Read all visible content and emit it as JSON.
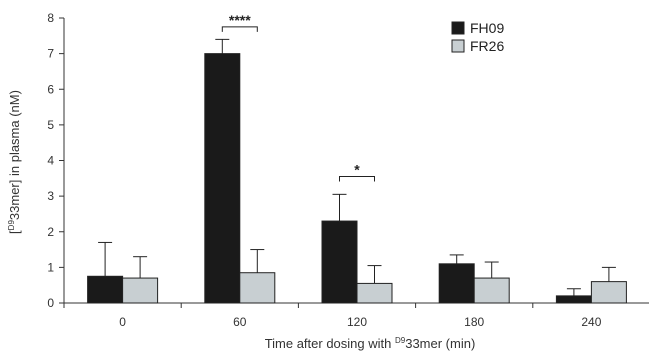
{
  "chart_data": {
    "type": "bar",
    "categories": [
      "0",
      "60",
      "120",
      "180",
      "240"
    ],
    "series": [
      {
        "name": "FH09",
        "color": "#1a1a1a",
        "values": [
          0.75,
          7.0,
          2.3,
          1.1,
          0.2
        ],
        "errors": [
          0.95,
          0.4,
          0.75,
          0.25,
          0.2
        ]
      },
      {
        "name": "FR26",
        "color": "#c8cfd2",
        "values": [
          0.7,
          0.85,
          0.55,
          0.7,
          0.6
        ],
        "errors": [
          0.6,
          0.65,
          0.5,
          0.45,
          0.4
        ]
      }
    ],
    "ylim": [
      0,
      8
    ],
    "yticks": [
      "0",
      "1",
      "2",
      "3",
      "4",
      "5",
      "6",
      "7",
      "8"
    ],
    "ylabel": {
      "pre": "[",
      "sup": "D9",
      "post": "33mer] in plasma (nM)"
    },
    "xlabel": {
      "pre": "Time after dosing with ",
      "sup": "D9",
      "post": "33mer (min)"
    },
    "legend_position": "top-right",
    "significance": [
      {
        "category_index": 1,
        "label": "****",
        "y": 7.75
      },
      {
        "category_index": 2,
        "label": "*",
        "y": 3.55
      }
    ]
  }
}
